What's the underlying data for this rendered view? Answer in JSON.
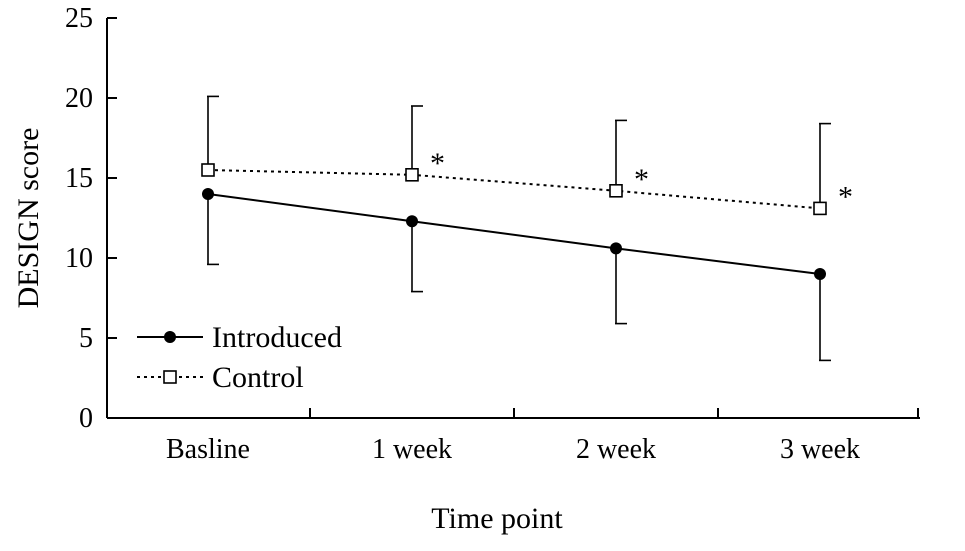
{
  "chart_data": {
    "type": "line",
    "title": "",
    "xlabel": "Time point",
    "ylabel": "DESIGN score",
    "categories": [
      "Basline",
      "1 week",
      "2 week",
      "3 week"
    ],
    "ylim": [
      0,
      25
    ],
    "yticks": [
      "0",
      "5",
      "10",
      "15",
      "20",
      "25"
    ],
    "grid": false,
    "legend_position": "bottom-left",
    "series": [
      {
        "name": "Introduced",
        "values": [
          14.0,
          12.3,
          10.6,
          9.0
        ],
        "error_upper": [
          4.4,
          4.4,
          4.7,
          5.4
        ],
        "marker": "filled-circle",
        "line_style": "solid",
        "color": "#000000"
      },
      {
        "name": "Control",
        "values": [
          15.5,
          15.2,
          14.2,
          13.1
        ],
        "error_upper": [
          4.6,
          4.3,
          4.4,
          5.3
        ],
        "marker": "open-square",
        "line_style": "dotted",
        "color": "#000000"
      }
    ],
    "annotations": [
      "",
      "*",
      "*",
      "*"
    ]
  }
}
